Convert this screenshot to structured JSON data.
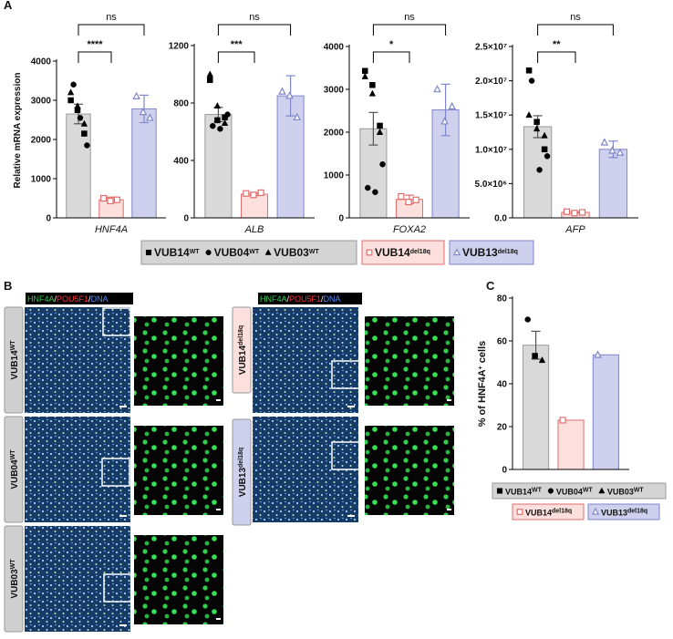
{
  "panel_labels": [
    "A",
    "B",
    "C"
  ],
  "chart_data": [
    {
      "type": "bar",
      "x_label": "HNF4A",
      "y_label": "Relative mRNA expression",
      "categories": [
        null,
        null,
        null
      ],
      "values": [
        2650,
        460,
        2780
      ],
      "errors": [
        250,
        70,
        350
      ],
      "colors": [
        {
          "fill": "#d9d9d9",
          "stroke": "#9a9a9a"
        },
        {
          "fill": "#fde0dd",
          "stroke": "#e06c6c"
        },
        {
          "fill": "#cfd0ee",
          "stroke": "#7f86c9"
        }
      ],
      "points": [
        [
          {
            "marker": "square",
            "values": [
              3000,
              2750,
              2150
            ]
          },
          {
            "marker": "circle",
            "values": [
              3400,
              2550,
              1850
            ]
          },
          {
            "marker": "triangle",
            "values": [
              3200,
              2850,
              2400
            ]
          }
        ],
        [
          {
            "marker": "open-square",
            "values": [
              500,
              430,
              460
            ]
          }
        ],
        [
          {
            "marker": "open-triangle",
            "values": [
              3100,
              2700,
              2550
            ]
          }
        ]
      ],
      "ylim": [
        0,
        4000
      ],
      "yticks": [
        0,
        1000,
        2000,
        3000,
        4000
      ],
      "comparisons": [
        {
          "bars": [
            0,
            2
          ],
          "label": "ns"
        },
        {
          "bars": [
            0,
            1
          ],
          "label": "****"
        }
      ]
    },
    {
      "type": "bar",
      "x_label": "ALB",
      "categories": [
        null,
        null,
        null
      ],
      "values": [
        720,
        165,
        850
      ],
      "errors": [
        50,
        10,
        140
      ],
      "colors": [
        {
          "fill": "#d9d9d9",
          "stroke": "#9a9a9a"
        },
        {
          "fill": "#fde0dd",
          "stroke": "#e06c6c"
        },
        {
          "fill": "#cfd0ee",
          "stroke": "#7f86c9"
        }
      ],
      "points": [
        [
          {
            "marker": "square",
            "values": [
              960,
              680,
              700
            ]
          },
          {
            "marker": "circle",
            "values": [
              640,
              620,
              720
            ]
          },
          {
            "marker": "triangle",
            "values": [
              1000,
              780,
              660
            ]
          }
        ],
        [
          {
            "marker": "open-square",
            "values": [
              170,
              160,
              175
            ]
          }
        ],
        [
          {
            "marker": "open-triangle",
            "values": [
              880,
              850,
              700
            ]
          }
        ]
      ],
      "ylim": [
        0,
        1200
      ],
      "yticks": [
        0,
        400,
        800,
        1200
      ],
      "comparisons": [
        {
          "bars": [
            0,
            2
          ],
          "label": "ns"
        },
        {
          "bars": [
            0,
            1
          ],
          "label": "***"
        }
      ]
    },
    {
      "type": "bar",
      "x_label": "FOXA2",
      "categories": [
        null,
        null,
        null
      ],
      "values": [
        2080,
        430,
        2520
      ],
      "errors": [
        380,
        100,
        600
      ],
      "colors": [
        {
          "fill": "#d9d9d9",
          "stroke": "#9a9a9a"
        },
        {
          "fill": "#fde0dd",
          "stroke": "#e06c6c"
        },
        {
          "fill": "#cfd0ee",
          "stroke": "#7f86c9"
        }
      ],
      "points": [
        [
          {
            "marker": "square",
            "values": [
              3430,
              3100,
              2150
            ]
          },
          {
            "marker": "circle",
            "values": [
              700,
              600,
              1250
            ]
          },
          {
            "marker": "triangle",
            "values": [
              3300,
              2900,
              2000
            ]
          }
        ],
        [
          {
            "marker": "open-square",
            "values": [
              500,
              370,
              420
            ]
          }
        ],
        [
          {
            "marker": "open-triangle",
            "values": [
              3000,
              2250,
              2600
            ]
          }
        ]
      ],
      "ylim": [
        0,
        4000
      ],
      "yticks": [
        0,
        1000,
        2000,
        3000,
        4000
      ],
      "comparisons": [
        {
          "bars": [
            0,
            2
          ],
          "label": "ns"
        },
        {
          "bars": [
            0,
            1
          ],
          "label": "*"
        }
      ]
    },
    {
      "type": "bar",
      "x_label": "AFP",
      "categories": [
        null,
        null,
        null
      ],
      "values": [
        13300000,
        800000,
        10000000
      ],
      "errors": [
        1600000,
        100000,
        1200000
      ],
      "colors": [
        {
          "fill": "#d9d9d9",
          "stroke": "#9a9a9a"
        },
        {
          "fill": "#fde0dd",
          "stroke": "#e06c6c"
        },
        {
          "fill": "#cfd0ee",
          "stroke": "#7f86c9"
        }
      ],
      "points": [
        [
          {
            "marker": "square",
            "values": [
              21500000,
              14000000,
              10000000
            ]
          },
          {
            "marker": "circle",
            "values": [
              20000000,
              7000000,
              9000000
            ]
          },
          {
            "marker": "triangle",
            "values": [
              15000000,
              13000000,
              12000000
            ]
          }
        ],
        [
          {
            "marker": "open-square",
            "values": [
              900000,
              700000,
              800000
            ]
          }
        ],
        [
          {
            "marker": "open-triangle",
            "values": [
              11000000,
              9800000,
              9500000
            ]
          }
        ]
      ],
      "ylim": [
        0,
        25000000
      ],
      "yticks": [
        {
          "value": 0,
          "label": "0.0"
        },
        {
          "value": 5000000,
          "label": "5.0×10⁶"
        },
        {
          "value": 10000000,
          "label": "1.0×10⁷"
        },
        {
          "value": 15000000,
          "label": "1.5×10⁷"
        },
        {
          "value": 20000000,
          "label": "2.0×10⁷"
        },
        {
          "value": 25000000,
          "label": "2.5×10⁷"
        }
      ],
      "comparisons": [
        {
          "bars": [
            0,
            2
          ],
          "label": "ns"
        },
        {
          "bars": [
            0,
            1
          ],
          "label": "**"
        }
      ]
    },
    {
      "type": "bar",
      "y_label": {
        "text": "% of HNF4A",
        "sup": "+",
        "after": " cells"
      },
      "categories": [
        null,
        null,
        null
      ],
      "values": [
        58,
        23,
        53.5
      ],
      "errors": [
        6.5,
        null,
        null
      ],
      "colors": [
        {
          "fill": "#d9d9d9",
          "stroke": "#9a9a9a"
        },
        {
          "fill": "#fde0dd",
          "stroke": "#e06c6c"
        },
        {
          "fill": "#cfd0ee",
          "stroke": "#7f86c9"
        }
      ],
      "points": [
        [
          {
            "marker": "circle",
            "values": [
              70
            ]
          },
          {
            "marker": "square",
            "values": [
              53
            ]
          },
          {
            "marker": "triangle",
            "values": [
              51
            ]
          }
        ],
        [
          {
            "marker": "open-square",
            "values": [
              23
            ]
          }
        ],
        [
          {
            "marker": "open-triangle",
            "values": [
              53.5
            ]
          }
        ]
      ],
      "ylim": [
        0,
        80
      ],
      "yticks": [
        0,
        20,
        40,
        60,
        80
      ]
    }
  ],
  "legend_a": [
    {
      "fill": "#d4d4d4",
      "stroke": "#999",
      "items": [
        {
          "marker": "square",
          "name": "VUB14",
          "sup": "WT"
        },
        {
          "marker": "circle",
          "name": "VUB04",
          "sup": "WT"
        },
        {
          "marker": "triangle",
          "name": "VUB03",
          "sup": "WT"
        }
      ]
    },
    {
      "fill": "#fde0dd",
      "stroke": "#e06c6c",
      "items": [
        {
          "marker": "open-square",
          "name": "VUB14",
          "sup": "del18q"
        }
      ]
    },
    {
      "fill": "#cfd0ee",
      "stroke": "#7f86c9",
      "items": [
        {
          "marker": "open-triangle",
          "name": "VUB13",
          "sup": "del18q"
        }
      ]
    }
  ],
  "legend_c": [
    {
      "fill": "#d4d4d4",
      "stroke": "#999",
      "items": [
        {
          "marker": "square",
          "name": "VUB14",
          "sup": "WT"
        },
        {
          "marker": "circle",
          "name": "VUB04",
          "sup": "WT"
        },
        {
          "marker": "triangle",
          "name": "VUB03",
          "sup": "WT"
        }
      ]
    },
    {
      "fill": "#fde0dd",
      "stroke": "#e06c6c",
      "items": [
        {
          "marker": "open-square",
          "name": "VUB14",
          "sup": "del18q"
        }
      ]
    },
    {
      "fill": "#cfd0ee",
      "stroke": "#7f86c9",
      "items": [
        {
          "marker": "open-triangle",
          "name": "VUB13",
          "sup": "del18q"
        }
      ]
    }
  ],
  "panel_b": {
    "stain": [
      {
        "text": "HNF4A",
        "color": "#33cc55"
      },
      {
        "text": "/",
        "color": "#ffffff"
      },
      {
        "text": "POU5F1",
        "color": "#ff3333"
      },
      {
        "text": "/",
        "color": "#ffffff"
      },
      {
        "text": "DNA",
        "color": "#4f8cff"
      }
    ],
    "left_rows": [
      {
        "name": "VUB14",
        "sup": "WT",
        "fill": "#cfcfcf"
      },
      {
        "name": "VUB04",
        "sup": "WT",
        "fill": "#cfcfcf"
      },
      {
        "name": "VUB03",
        "sup": "WT",
        "fill": "#cfcfcf"
      }
    ],
    "right_rows": [
      {
        "name": "VUB14",
        "sup": "del18q",
        "fill": "#fde0dd"
      },
      {
        "name": "VUB13",
        "sup": "del18q",
        "fill": "#cfd0ee"
      }
    ]
  }
}
